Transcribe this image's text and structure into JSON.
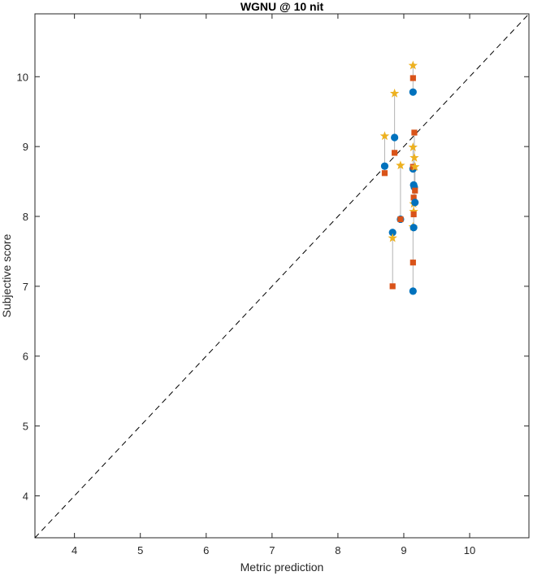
{
  "chart_data": {
    "type": "scatter",
    "title": "WGNU @ 10 nit",
    "xlabel": "Metric prediction",
    "ylabel": "Subjective score",
    "xlim": [
      3.4,
      10.9
    ],
    "ylim": [
      3.4,
      10.9
    ],
    "xticks": [
      4,
      5,
      6,
      7,
      8,
      9,
      10
    ],
    "yticks": [
      4,
      5,
      6,
      7,
      8,
      9,
      10
    ],
    "grid": false,
    "reference_line": {
      "style": "dashed",
      "color": "#000000",
      "from": [
        3.4,
        3.4
      ],
      "to": [
        10.9,
        10.9
      ]
    },
    "connector_color": "#b3b3b3",
    "groups": [
      {
        "x": 8.71,
        "values": [
          8.72,
          8.62,
          9.15
        ]
      },
      {
        "x": 8.83,
        "values": [
          7.77,
          7.0,
          7.69
        ]
      },
      {
        "x": 8.86,
        "values": [
          9.13,
          8.91,
          9.76
        ]
      },
      {
        "x": 8.95,
        "values": [
          7.96,
          7.96,
          8.73
        ]
      },
      {
        "x": 9.14,
        "values": [
          6.93,
          7.34,
          7.85
        ]
      },
      {
        "x": 9.14,
        "values": [
          9.78,
          9.98,
          10.16
        ]
      },
      {
        "x": 9.14,
        "values": [
          8.68,
          8.71,
          8.99
        ]
      },
      {
        "x": 9.15,
        "values": [
          8.45,
          8.27,
          8.07
        ]
      },
      {
        "x": 9.15,
        "values": [
          7.84,
          8.03,
          8.18
        ]
      },
      {
        "x": 9.16,
        "values": [
          8.42,
          9.2,
          8.84
        ]
      },
      {
        "x": 9.17,
        "values": [
          8.2,
          8.37,
          8.71
        ]
      }
    ],
    "series": [
      {
        "marker": "circle",
        "color": "#0072BD"
      },
      {
        "marker": "square",
        "color": "#D95319"
      },
      {
        "marker": "star",
        "color": "#EDB120"
      }
    ]
  }
}
